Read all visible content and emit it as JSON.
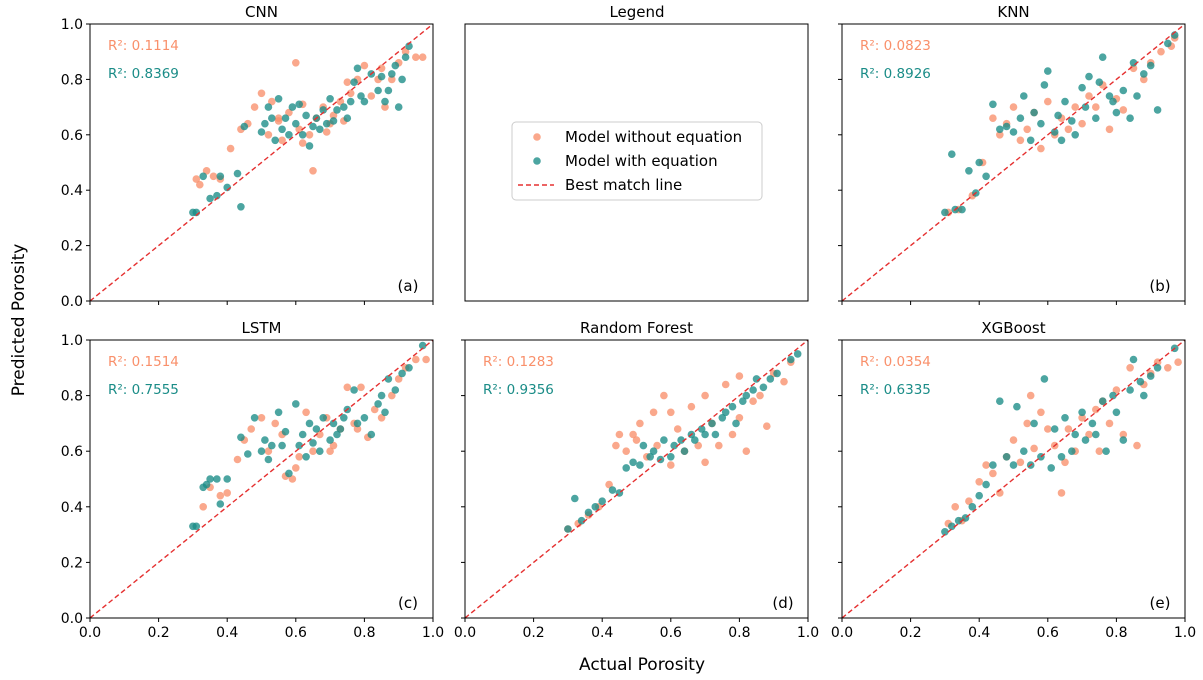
{
  "figure": {
    "xlabel": "Actual Porosity",
    "ylabel": "Predicted Porosity"
  },
  "colors": {
    "without": "#F9906B",
    "with": "#1A8C87",
    "best_line": "#E53030",
    "axes": "#000000"
  },
  "legend": {
    "title": "Legend",
    "items": [
      {
        "label": "Model without equation",
        "kind": "marker",
        "color": "#F9906B"
      },
      {
        "label": "Model with equation",
        "kind": "marker",
        "color": "#1A8C87"
      },
      {
        "label": "Best match line",
        "kind": "dashed-line",
        "color": "#E53030"
      }
    ]
  },
  "chart_data": [
    {
      "type": "scatter",
      "title": "CNN",
      "tag": "(a)",
      "xlim": [
        0,
        1
      ],
      "ylim": [
        0,
        1
      ],
      "xticks": [
        "0.0",
        "0.2",
        "0.4",
        "0.6",
        "0.8",
        "1.0"
      ],
      "yticks": [
        "0.0",
        "0.2",
        "0.4",
        "0.6",
        "0.8",
        "1.0"
      ],
      "show_xticklabels": false,
      "show_yticklabels": true,
      "r2_labels": [
        "R²: 0.1114",
        "R²: 0.8369"
      ],
      "series": [
        {
          "name": "Model without equation",
          "r2": 0.1114,
          "color": "#F9906B",
          "x": [
            0.31,
            0.32,
            0.34,
            0.36,
            0.38,
            0.41,
            0.44,
            0.46,
            0.48,
            0.5,
            0.52,
            0.53,
            0.55,
            0.56,
            0.58,
            0.6,
            0.61,
            0.62,
            0.64,
            0.65,
            0.66,
            0.68,
            0.7,
            0.71,
            0.73,
            0.74,
            0.76,
            0.78,
            0.8,
            0.82,
            0.84,
            0.86,
            0.88,
            0.9,
            0.92,
            0.95,
            0.97,
            0.55,
            0.62,
            0.69,
            0.75,
            0.85
          ],
          "y": [
            0.44,
            0.42,
            0.47,
            0.45,
            0.44,
            0.55,
            0.62,
            0.64,
            0.7,
            0.75,
            0.6,
            0.72,
            0.65,
            0.58,
            0.68,
            0.86,
            0.62,
            0.57,
            0.6,
            0.47,
            0.66,
            0.7,
            0.64,
            0.67,
            0.72,
            0.65,
            0.75,
            0.8,
            0.85,
            0.74,
            0.8,
            0.7,
            0.8,
            0.86,
            0.9,
            0.88,
            0.88,
            0.66,
            0.71,
            0.61,
            0.79,
            0.84
          ]
        },
        {
          "name": "Model with equation",
          "r2": 0.8369,
          "color": "#1A8C87",
          "x": [
            0.3,
            0.31,
            0.33,
            0.35,
            0.37,
            0.38,
            0.4,
            0.43,
            0.44,
            0.45,
            0.5,
            0.51,
            0.52,
            0.53,
            0.54,
            0.55,
            0.56,
            0.57,
            0.58,
            0.59,
            0.6,
            0.61,
            0.62,
            0.63,
            0.64,
            0.65,
            0.66,
            0.67,
            0.68,
            0.69,
            0.7,
            0.71,
            0.72,
            0.74,
            0.75,
            0.76,
            0.77,
            0.78,
            0.79,
            0.8,
            0.82,
            0.84,
            0.85,
            0.86,
            0.87,
            0.88,
            0.89,
            0.9,
            0.91,
            0.92,
            0.93
          ],
          "y": [
            0.32,
            0.32,
            0.45,
            0.37,
            0.38,
            0.45,
            0.41,
            0.46,
            0.34,
            0.63,
            0.61,
            0.64,
            0.7,
            0.66,
            0.58,
            0.73,
            0.62,
            0.66,
            0.6,
            0.7,
            0.64,
            0.71,
            0.6,
            0.67,
            0.56,
            0.63,
            0.66,
            0.62,
            0.69,
            0.64,
            0.73,
            0.65,
            0.69,
            0.7,
            0.66,
            0.72,
            0.79,
            0.84,
            0.74,
            0.72,
            0.82,
            0.76,
            0.81,
            0.72,
            0.76,
            0.82,
            0.85,
            0.7,
            0.8,
            0.88,
            0.92
          ]
        }
      ]
    },
    {
      "type": "scatter",
      "title": "KNN",
      "tag": "(b)",
      "xlim": [
        0,
        1
      ],
      "ylim": [
        0,
        1
      ],
      "xticks": [
        "0.0",
        "0.2",
        "0.4",
        "0.6",
        "0.8",
        "1.0"
      ],
      "yticks": [
        "0.0",
        "0.2",
        "0.4",
        "0.6",
        "0.8",
        "1.0"
      ],
      "show_xticklabels": false,
      "show_yticklabels": false,
      "r2_labels": [
        "R²: 0.0823",
        "R²: 0.8926"
      ],
      "series": [
        {
          "name": "Model without equation",
          "r2": 0.0823,
          "color": "#F9906B",
          "x": [
            0.31,
            0.34,
            0.38,
            0.41,
            0.44,
            0.46,
            0.48,
            0.5,
            0.52,
            0.54,
            0.56,
            0.58,
            0.6,
            0.62,
            0.64,
            0.66,
            0.68,
            0.7,
            0.72,
            0.74,
            0.76,
            0.78,
            0.8,
            0.82,
            0.85,
            0.88,
            0.9,
            0.93,
            0.96,
            0.97
          ],
          "y": [
            0.32,
            0.33,
            0.38,
            0.5,
            0.66,
            0.6,
            0.64,
            0.7,
            0.58,
            0.62,
            0.68,
            0.55,
            0.72,
            0.6,
            0.66,
            0.62,
            0.7,
            0.64,
            0.74,
            0.7,
            0.78,
            0.62,
            0.73,
            0.69,
            0.84,
            0.8,
            0.86,
            0.9,
            0.92,
            0.95
          ]
        },
        {
          "name": "Model with equation",
          "r2": 0.8926,
          "color": "#1A8C87",
          "x": [
            0.3,
            0.32,
            0.33,
            0.35,
            0.37,
            0.39,
            0.4,
            0.42,
            0.44,
            0.46,
            0.48,
            0.5,
            0.52,
            0.53,
            0.55,
            0.56,
            0.58,
            0.59,
            0.6,
            0.62,
            0.63,
            0.64,
            0.65,
            0.67,
            0.68,
            0.7,
            0.71,
            0.72,
            0.74,
            0.75,
            0.76,
            0.78,
            0.79,
            0.8,
            0.82,
            0.84,
            0.85,
            0.86,
            0.88,
            0.9,
            0.92,
            0.95,
            0.97
          ],
          "y": [
            0.32,
            0.53,
            0.33,
            0.33,
            0.47,
            0.39,
            0.5,
            0.45,
            0.71,
            0.62,
            0.63,
            0.61,
            0.66,
            0.74,
            0.58,
            0.68,
            0.64,
            0.78,
            0.83,
            0.61,
            0.67,
            0.58,
            0.72,
            0.65,
            0.6,
            0.77,
            0.7,
            0.81,
            0.66,
            0.79,
            0.88,
            0.74,
            0.72,
            0.68,
            0.76,
            0.66,
            0.86,
            0.74,
            0.82,
            0.85,
            0.69,
            0.93,
            0.96
          ]
        }
      ]
    },
    {
      "type": "scatter",
      "title": "LSTM",
      "tag": "(c)",
      "xlim": [
        0,
        1
      ],
      "ylim": [
        0,
        1
      ],
      "xticks": [
        "0.0",
        "0.2",
        "0.4",
        "0.6",
        "0.8",
        "1.0"
      ],
      "yticks": [
        "0.0",
        "0.2",
        "0.4",
        "0.6",
        "0.8",
        "1.0"
      ],
      "show_xticklabels": true,
      "show_yticklabels": true,
      "r2_labels": [
        "R²: 0.1514",
        "R²: 0.7555"
      ],
      "series": [
        {
          "name": "Model without equation",
          "r2": 0.1514,
          "color": "#F9906B",
          "x": [
            0.33,
            0.35,
            0.38,
            0.4,
            0.43,
            0.45,
            0.47,
            0.5,
            0.52,
            0.54,
            0.56,
            0.57,
            0.59,
            0.61,
            0.63,
            0.65,
            0.67,
            0.69,
            0.71,
            0.73,
            0.75,
            0.77,
            0.79,
            0.81,
            0.83,
            0.85,
            0.88,
            0.9,
            0.92,
            0.95,
            0.98,
            0.6,
            0.7,
            0.78
          ],
          "y": [
            0.4,
            0.47,
            0.44,
            0.45,
            0.57,
            0.64,
            0.68,
            0.72,
            0.6,
            0.7,
            0.66,
            0.51,
            0.5,
            0.58,
            0.74,
            0.6,
            0.66,
            0.72,
            0.62,
            0.68,
            0.83,
            0.7,
            0.83,
            0.65,
            0.75,
            0.72,
            0.8,
            0.86,
            0.9,
            0.93,
            0.93,
            0.54,
            0.6,
            0.68
          ]
        },
        {
          "name": "Model with equation",
          "r2": 0.7555,
          "color": "#1A8C87",
          "x": [
            0.3,
            0.31,
            0.33,
            0.34,
            0.35,
            0.37,
            0.38,
            0.4,
            0.44,
            0.46,
            0.48,
            0.5,
            0.51,
            0.52,
            0.53,
            0.55,
            0.56,
            0.57,
            0.58,
            0.6,
            0.61,
            0.62,
            0.63,
            0.64,
            0.65,
            0.66,
            0.67,
            0.68,
            0.7,
            0.71,
            0.72,
            0.73,
            0.74,
            0.75,
            0.77,
            0.78,
            0.8,
            0.82,
            0.84,
            0.85,
            0.86,
            0.87,
            0.89,
            0.91,
            0.93,
            0.97
          ],
          "y": [
            0.33,
            0.33,
            0.47,
            0.48,
            0.5,
            0.5,
            0.41,
            0.5,
            0.65,
            0.59,
            0.72,
            0.6,
            0.64,
            0.57,
            0.62,
            0.74,
            0.62,
            0.67,
            0.52,
            0.77,
            0.62,
            0.66,
            0.58,
            0.7,
            0.63,
            0.68,
            0.6,
            0.72,
            0.64,
            0.7,
            0.66,
            0.68,
            0.72,
            0.75,
            0.82,
            0.7,
            0.72,
            0.66,
            0.77,
            0.8,
            0.74,
            0.86,
            0.82,
            0.88,
            0.9,
            0.98
          ]
        }
      ]
    },
    {
      "type": "scatter",
      "title": "Random Forest",
      "tag": "(d)",
      "xlim": [
        0,
        1
      ],
      "ylim": [
        0,
        1
      ],
      "xticks": [
        "0.0",
        "0.2",
        "0.4",
        "0.6",
        "0.8",
        "1.0"
      ],
      "yticks": [
        "0.0",
        "0.2",
        "0.4",
        "0.6",
        "0.8",
        "1.0"
      ],
      "show_xticklabels": true,
      "show_yticklabels": false,
      "r2_labels": [
        "R²: 0.1283",
        "R²: 0.9356"
      ],
      "series": [
        {
          "name": "Model without equation",
          "r2": 0.1283,
          "color": "#F9906B",
          "x": [
            0.3,
            0.33,
            0.36,
            0.39,
            0.42,
            0.44,
            0.45,
            0.47,
            0.49,
            0.51,
            0.53,
            0.55,
            0.56,
            0.58,
            0.6,
            0.62,
            0.64,
            0.66,
            0.68,
            0.7,
            0.72,
            0.74,
            0.76,
            0.78,
            0.8,
            0.82,
            0.84,
            0.86,
            0.88,
            0.9,
            0.93,
            0.95,
            0.5,
            0.6,
            0.7,
            0.8
          ],
          "y": [
            0.32,
            0.34,
            0.37,
            0.4,
            0.48,
            0.62,
            0.66,
            0.6,
            0.66,
            0.7,
            0.58,
            0.74,
            0.62,
            0.8,
            0.55,
            0.68,
            0.6,
            0.76,
            0.62,
            0.8,
            0.7,
            0.62,
            0.84,
            0.66,
            0.87,
            0.6,
            0.78,
            0.8,
            0.69,
            0.88,
            0.85,
            0.92,
            0.64,
            0.74,
            0.56,
            0.72
          ]
        },
        {
          "name": "Model with equation",
          "r2": 0.9356,
          "color": "#1A8C87",
          "x": [
            0.3,
            0.32,
            0.34,
            0.36,
            0.38,
            0.4,
            0.43,
            0.45,
            0.47,
            0.49,
            0.51,
            0.52,
            0.54,
            0.55,
            0.57,
            0.58,
            0.6,
            0.61,
            0.63,
            0.64,
            0.66,
            0.67,
            0.69,
            0.7,
            0.72,
            0.73,
            0.75,
            0.76,
            0.78,
            0.79,
            0.81,
            0.82,
            0.84,
            0.85,
            0.87,
            0.89,
            0.91,
            0.95,
            0.97
          ],
          "y": [
            0.32,
            0.43,
            0.35,
            0.38,
            0.4,
            0.42,
            0.46,
            0.45,
            0.54,
            0.56,
            0.55,
            0.62,
            0.58,
            0.6,
            0.57,
            0.64,
            0.58,
            0.62,
            0.64,
            0.6,
            0.66,
            0.64,
            0.68,
            0.66,
            0.7,
            0.66,
            0.72,
            0.74,
            0.76,
            0.7,
            0.78,
            0.8,
            0.82,
            0.86,
            0.83,
            0.86,
            0.88,
            0.93,
            0.95
          ]
        }
      ]
    },
    {
      "type": "scatter",
      "title": "XGBoost",
      "tag": "(e)",
      "xlim": [
        0,
        1
      ],
      "ylim": [
        0,
        1
      ],
      "xticks": [
        "0.0",
        "0.2",
        "0.4",
        "0.6",
        "0.8",
        "1.0"
      ],
      "yticks": [
        "0.0",
        "0.2",
        "0.4",
        "0.6",
        "0.8",
        "1.0"
      ],
      "show_xticklabels": true,
      "show_yticklabels": false,
      "r2_labels": [
        "R²: 0.0354",
        "R²: 0.6335"
      ],
      "series": [
        {
          "name": "Model without equation",
          "r2": 0.0354,
          "color": "#F9906B",
          "x": [
            0.31,
            0.33,
            0.35,
            0.37,
            0.4,
            0.42,
            0.44,
            0.46,
            0.48,
            0.5,
            0.52,
            0.54,
            0.56,
            0.58,
            0.6,
            0.62,
            0.64,
            0.66,
            0.68,
            0.7,
            0.72,
            0.74,
            0.76,
            0.78,
            0.8,
            0.82,
            0.84,
            0.86,
            0.88,
            0.9,
            0.92,
            0.95,
            0.98,
            0.55,
            0.65,
            0.75
          ],
          "y": [
            0.34,
            0.4,
            0.35,
            0.42,
            0.49,
            0.55,
            0.52,
            0.45,
            0.58,
            0.64,
            0.56,
            0.7,
            0.61,
            0.74,
            0.68,
            0.62,
            0.45,
            0.68,
            0.6,
            0.72,
            0.66,
            0.75,
            0.78,
            0.7,
            0.82,
            0.66,
            0.9,
            0.62,
            0.84,
            0.88,
            0.92,
            0.9,
            0.92,
            0.8,
            0.56,
            0.6
          ]
        },
        {
          "name": "Model with equation",
          "r2": 0.6335,
          "color": "#1A8C87",
          "x": [
            0.3,
            0.32,
            0.34,
            0.36,
            0.38,
            0.4,
            0.42,
            0.44,
            0.46,
            0.48,
            0.5,
            0.51,
            0.53,
            0.55,
            0.56,
            0.58,
            0.59,
            0.61,
            0.62,
            0.64,
            0.65,
            0.67,
            0.68,
            0.7,
            0.71,
            0.73,
            0.74,
            0.76,
            0.77,
            0.79,
            0.8,
            0.82,
            0.84,
            0.85,
            0.87,
            0.88,
            0.9,
            0.92,
            0.97
          ],
          "y": [
            0.31,
            0.33,
            0.35,
            0.36,
            0.4,
            0.44,
            0.48,
            0.55,
            0.78,
            0.58,
            0.55,
            0.76,
            0.6,
            0.55,
            0.7,
            0.58,
            0.86,
            0.54,
            0.68,
            0.58,
            0.72,
            0.6,
            0.66,
            0.74,
            0.64,
            0.7,
            0.66,
            0.78,
            0.6,
            0.8,
            0.74,
            0.64,
            0.82,
            0.93,
            0.85,
            0.8,
            0.87,
            0.9,
            0.97
          ]
        }
      ]
    }
  ]
}
